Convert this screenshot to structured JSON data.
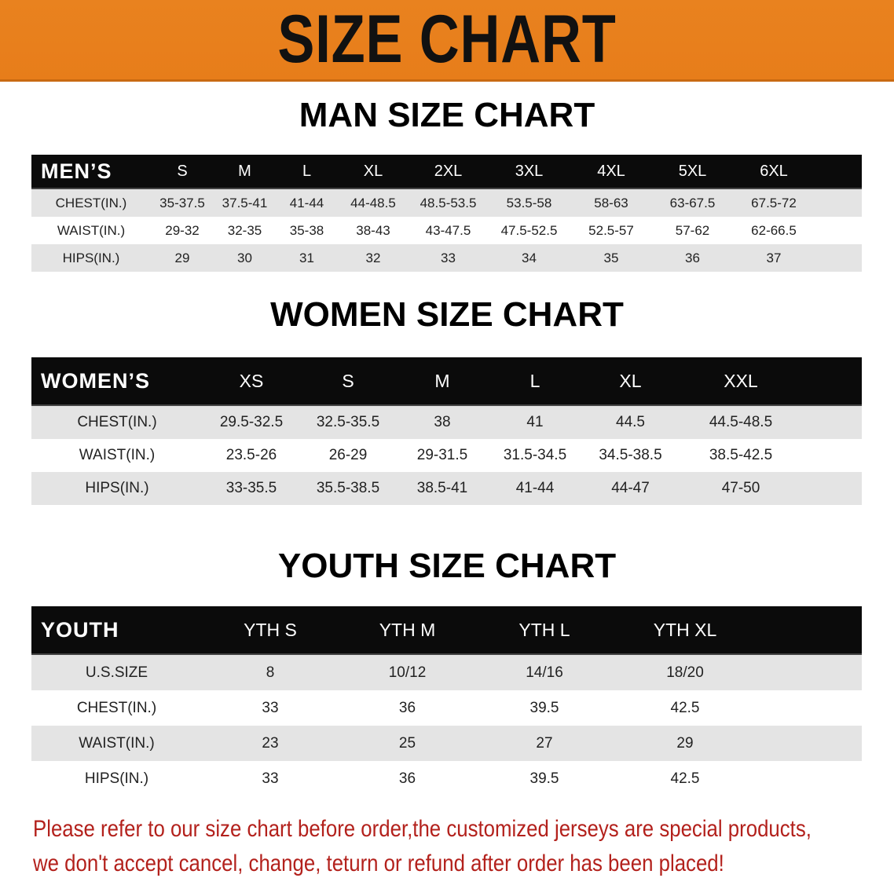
{
  "banner": {
    "title": "SIZE CHART",
    "color": "#e8801e"
  },
  "men": {
    "title": "MAN SIZE CHART",
    "header": "MEN’S",
    "sizes": [
      "S",
      "M",
      "L",
      "XL",
      "2XL",
      "3XL",
      "4XL",
      "5XL",
      "6XL"
    ],
    "rows": [
      {
        "label": "CHEST(IN.)",
        "values": [
          "35-37.5",
          "37.5-41",
          "41-44",
          "44-48.5",
          "48.5-53.5",
          "53.5-58",
          "58-63",
          "63-67.5",
          "67.5-72"
        ]
      },
      {
        "label": "WAIST(IN.)",
        "values": [
          "29-32",
          "32-35",
          "35-38",
          "38-43",
          "43-47.5",
          "47.5-52.5",
          "52.5-57",
          "57-62",
          "62-66.5"
        ]
      },
      {
        "label": "HIPS(IN.)",
        "values": [
          "29",
          "30",
          "31",
          "32",
          "33",
          "34",
          "35",
          "36",
          "37"
        ]
      }
    ]
  },
  "women": {
    "title": "WOMEN SIZE CHART",
    "header": "WOMEN’S",
    "sizes": [
      "XS",
      "S",
      "M",
      "L",
      "XL",
      "XXL"
    ],
    "rows": [
      {
        "label": "CHEST(IN.)",
        "values": [
          "29.5-32.5",
          "32.5-35.5",
          "38",
          "41",
          "44.5",
          "44.5-48.5"
        ]
      },
      {
        "label": "WAIST(IN.)",
        "values": [
          "23.5-26",
          "26-29",
          "29-31.5",
          "31.5-34.5",
          "34.5-38.5",
          "38.5-42.5"
        ]
      },
      {
        "label": "HIPS(IN.)",
        "values": [
          "33-35.5",
          "35.5-38.5",
          "38.5-41",
          "41-44",
          "44-47",
          "47-50"
        ]
      }
    ]
  },
  "youth": {
    "title": "YOUTH SIZE CHART",
    "header": "YOUTH",
    "sizes": [
      "YTH S",
      "YTH M",
      "YTH L",
      "YTH XL"
    ],
    "rows": [
      {
        "label": "U.S.SIZE",
        "values": [
          "8",
          "10/12",
          "14/16",
          "18/20"
        ]
      },
      {
        "label": "CHEST(IN.)",
        "values": [
          "33",
          "36",
          "39.5",
          "42.5"
        ]
      },
      {
        "label": "WAIST(IN.)",
        "values": [
          "23",
          "25",
          "27",
          "29"
        ]
      },
      {
        "label": "HIPS(IN.)",
        "values": [
          "33",
          "36",
          "39.5",
          "42.5"
        ]
      }
    ]
  },
  "note": {
    "line1": "Please refer to our size chart before order,the customized jerseys are special products,",
    "line2": "we don't accept cancel, change, teturn or refund after order has been placed!",
    "color": "#b3211c"
  }
}
